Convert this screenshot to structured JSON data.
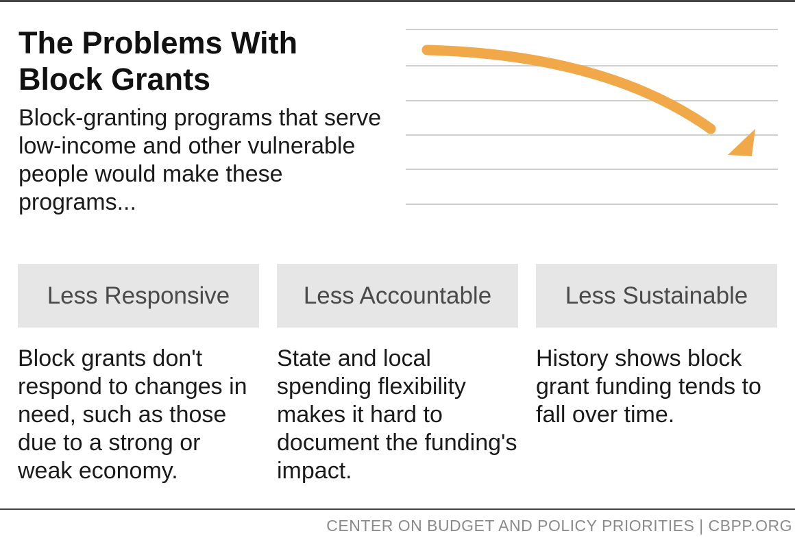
{
  "title": "The Problems With Block Grants",
  "subtitle": "Block-granting programs that serve low-income and other vulnerable people would make these programs...",
  "graphic": {
    "arrow_icon": "downward-trend-arrow",
    "arrow_color": "#F0A849",
    "gridline_color": "#cfcfcf"
  },
  "cards": [
    {
      "heading": "Less Responsive",
      "text": "Block grants don't respond to changes in need, such as those due to a strong or weak economy."
    },
    {
      "heading": "Less Accountable",
      "text": "State and local spending flexibility makes it hard to document the funding's impact."
    },
    {
      "heading": "Less Sustainable",
      "text": "History shows block grant funding tends to fall over time."
    }
  ],
  "footer": "CENTER ON BUDGET AND POLICY PRIORITIES | CBPP.ORG"
}
